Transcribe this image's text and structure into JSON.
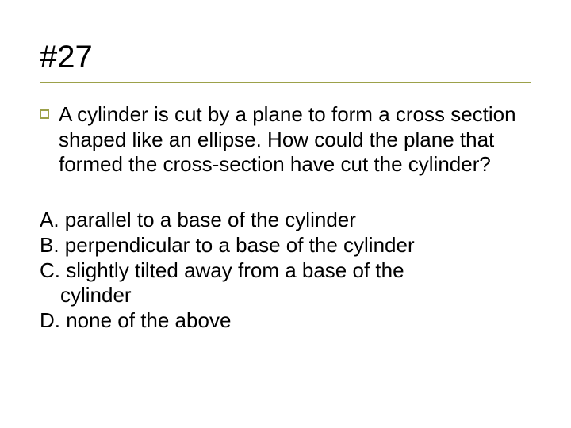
{
  "colors": {
    "underline": "#9ca14a",
    "bullet_border": "#9ca14a",
    "text": "#000000",
    "background": "#ffffff"
  },
  "typography": {
    "title_fontsize": 40,
    "body_fontsize": 26,
    "font_family": "Verdana"
  },
  "title": "#27",
  "question": "A cylinder is cut by a plane to form a cross section shaped like an ellipse. How could the plane that formed the cross-section have cut the cylinder?",
  "answers": {
    "a": "A. parallel to a base of the cylinder",
    "b": "B. perpendicular to a base of the cylinder",
    "c_line1": "C. slightly tilted away from a base of the",
    "c_line2": "cylinder",
    "d": "D. none of the above"
  }
}
